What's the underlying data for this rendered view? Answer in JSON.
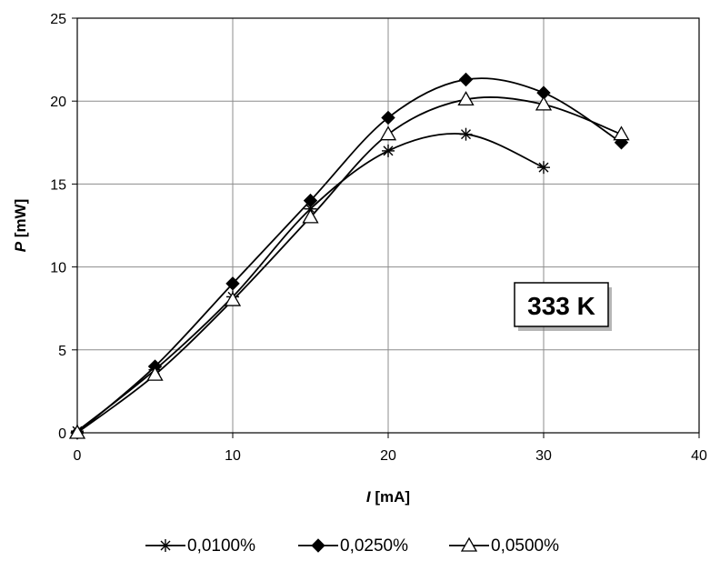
{
  "chart_data": {
    "type": "line",
    "title": "",
    "xlabel_var": "I",
    "xlabel_unit": " [mA]",
    "ylabel_var": "P",
    "ylabel_unit": " [mW]",
    "xlim": [
      0,
      40
    ],
    "ylim": [
      0,
      25
    ],
    "xticks": [
      0,
      10,
      20,
      30,
      40
    ],
    "yticks": [
      0,
      5,
      10,
      15,
      20,
      25
    ],
    "grid": true,
    "smooth": true,
    "annotation": "333 K",
    "legend_position": "bottom",
    "series": [
      {
        "name": "0,0100%",
        "marker": "asterisk",
        "x": [
          0,
          5,
          10,
          15,
          20,
          25,
          30
        ],
        "y": [
          0.1,
          3.8,
          8.2,
          13.5,
          17.0,
          18.0,
          16.0
        ]
      },
      {
        "name": "0,0250%",
        "marker": "diamond",
        "x": [
          0,
          5,
          10,
          15,
          20,
          25,
          30,
          35
        ],
        "y": [
          0.0,
          4.0,
          9.0,
          14.0,
          19.0,
          21.3,
          20.5,
          17.5
        ]
      },
      {
        "name": "0,0500%",
        "marker": "triangle",
        "x": [
          0,
          5,
          10,
          15,
          20,
          25,
          30,
          35
        ],
        "y": [
          0.0,
          3.5,
          8.0,
          13.0,
          18.0,
          20.1,
          19.8,
          18.0
        ]
      }
    ]
  }
}
